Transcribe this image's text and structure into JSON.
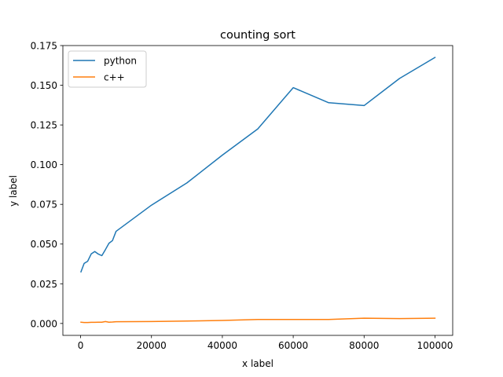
{
  "chart_data": {
    "type": "line",
    "title": "counting sort",
    "xlabel": "x label",
    "ylabel": "y label",
    "xlim": [
      -5000,
      105000
    ],
    "ylim": [
      -0.0075,
      0.175
    ],
    "xticks": [
      0,
      20000,
      40000,
      60000,
      80000,
      100000
    ],
    "xtick_labels": [
      "0",
      "20000",
      "40000",
      "60000",
      "80000",
      "100000"
    ],
    "yticks": [
      0.0,
      0.025,
      0.05,
      0.075,
      0.1,
      0.125,
      0.15,
      0.175
    ],
    "ytick_labels": [
      "0.000",
      "0.025",
      "0.050",
      "0.075",
      "0.100",
      "0.125",
      "0.150",
      "0.175"
    ],
    "grid": false,
    "legend_position": "top-left",
    "series": [
      {
        "name": "python",
        "color": "#1f77b4",
        "x": [
          100,
          1000,
          2000,
          3000,
          4000,
          5000,
          6000,
          7000,
          8000,
          9000,
          10000,
          20000,
          30000,
          40000,
          50000,
          60000,
          70000,
          80000,
          90000,
          100000
        ],
        "y": [
          0.0325,
          0.0378,
          0.0392,
          0.0438,
          0.0453,
          0.0437,
          0.0427,
          0.0465,
          0.0505,
          0.0522,
          0.058,
          0.0745,
          0.0885,
          0.106,
          0.1225,
          0.1485,
          0.139,
          0.1372,
          0.1543,
          0.1675
        ]
      },
      {
        "name": "c++",
        "color": "#ff7f0e",
        "x": [
          100,
          1000,
          2000,
          3000,
          4000,
          5000,
          6000,
          7000,
          8000,
          9000,
          10000,
          20000,
          30000,
          40000,
          50000,
          60000,
          70000,
          80000,
          90000,
          100000
        ],
        "y": [
          0.0008,
          0.0006,
          0.0006,
          0.0007,
          0.0007,
          0.0008,
          0.0008,
          0.0012,
          0.0008,
          0.0009,
          0.0011,
          0.0012,
          0.0015,
          0.0019,
          0.0025,
          0.0025,
          0.0025,
          0.0033,
          0.0031,
          0.0033
        ]
      }
    ]
  }
}
